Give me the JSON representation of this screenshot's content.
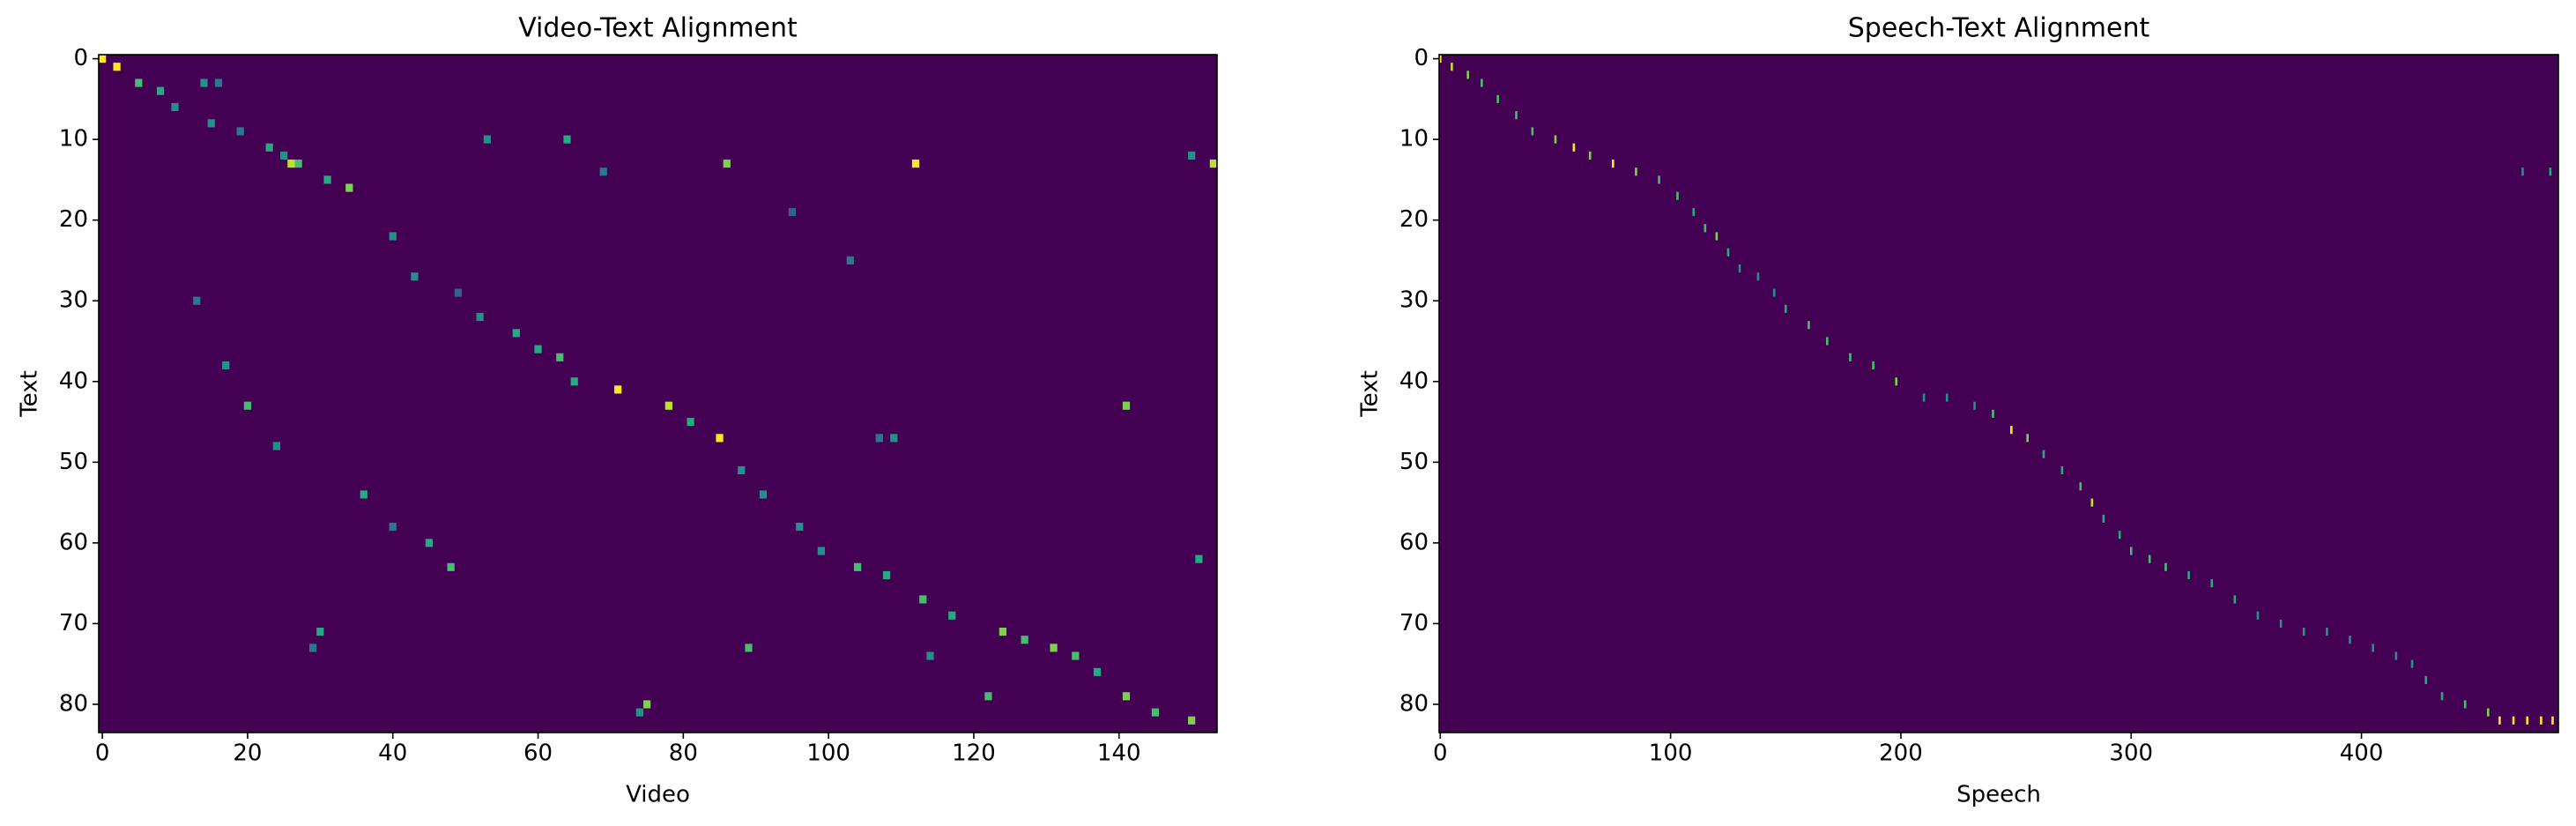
{
  "chart_data": [
    {
      "type": "heatmap",
      "title": "Video-Text Alignment",
      "xlabel": "Video",
      "ylabel": "Text",
      "xlim": [
        -0.5,
        153.5
      ],
      "ylim": [
        83.5,
        -0.5
      ],
      "xticks": [
        0,
        20,
        40,
        60,
        80,
        100,
        120,
        140
      ],
      "yticks": [
        0,
        10,
        20,
        30,
        40,
        50,
        60,
        70,
        80
      ],
      "colormap": "viridis",
      "vmin": 0,
      "vmax": 1,
      "cells": {
        "x": [
          0,
          2,
          5,
          8,
          10,
          14,
          16,
          15,
          19,
          23,
          25,
          26,
          27,
          31,
          34,
          40,
          43,
          53,
          64,
          69,
          86,
          112,
          153,
          150,
          13,
          17,
          20,
          24,
          49,
          52,
          57,
          60,
          63,
          65,
          71,
          78,
          81,
          85,
          88,
          91,
          96,
          99,
          104,
          108,
          113,
          117,
          124,
          127,
          131,
          134,
          137,
          141,
          145,
          150,
          36,
          40,
          45,
          48,
          30,
          29,
          75,
          74,
          89,
          109,
          107,
          141,
          122,
          114,
          103,
          95,
          151
        ],
        "y": [
          0,
          1,
          3,
          4,
          6,
          3,
          3,
          8,
          9,
          11,
          12,
          13,
          13,
          15,
          16,
          22,
          27,
          10,
          10,
          14,
          13,
          13,
          13,
          12,
          30,
          38,
          43,
          48,
          29,
          32,
          34,
          36,
          37,
          40,
          41,
          43,
          45,
          47,
          51,
          54,
          58,
          61,
          63,
          64,
          67,
          69,
          71,
          72,
          73,
          74,
          76,
          79,
          81,
          82,
          54,
          58,
          60,
          63,
          71,
          73,
          80,
          81,
          73,
          47,
          47,
          43,
          79,
          74,
          25,
          19,
          62
        ],
        "values": [
          1.0,
          1.0,
          0.7,
          0.6,
          0.5,
          0.5,
          0.4,
          0.5,
          0.4,
          0.6,
          0.5,
          0.9,
          0.7,
          0.6,
          0.8,
          0.5,
          0.5,
          0.5,
          0.6,
          0.4,
          0.8,
          1.0,
          0.9,
          0.5,
          0.4,
          0.5,
          0.7,
          0.5,
          0.3,
          0.5,
          0.6,
          0.6,
          0.7,
          0.6,
          1.0,
          0.9,
          0.6,
          1.0,
          0.5,
          0.5,
          0.5,
          0.5,
          0.7,
          0.6,
          0.7,
          0.6,
          0.8,
          0.7,
          0.8,
          0.7,
          0.6,
          0.8,
          0.7,
          0.8,
          0.6,
          0.4,
          0.6,
          0.7,
          0.6,
          0.4,
          0.8,
          0.5,
          0.7,
          0.5,
          0.4,
          0.8,
          0.7,
          0.5,
          0.4,
          0.3,
          0.6
        ]
      }
    },
    {
      "type": "heatmap",
      "title": "Speech-Text Alignment",
      "xlabel": "Speech",
      "ylabel": "Text",
      "xlim": [
        -0.5,
        485.5
      ],
      "ylim": [
        83.5,
        -0.5
      ],
      "xticks": [
        0,
        100,
        200,
        300,
        400
      ],
      "yticks": [
        0,
        10,
        20,
        30,
        40,
        50,
        60,
        70,
        80
      ],
      "colormap": "viridis",
      "vmin": 0,
      "vmax": 1,
      "cells": {
        "x": [
          0,
          5,
          12,
          18,
          25,
          33,
          40,
          50,
          58,
          65,
          75,
          85,
          95,
          103,
          110,
          115,
          120,
          125,
          130,
          138,
          145,
          150,
          160,
          168,
          178,
          188,
          198,
          210,
          220,
          232,
          240,
          248,
          255,
          262,
          270,
          278,
          283,
          288,
          295,
          300,
          308,
          315,
          325,
          335,
          345,
          355,
          365,
          375,
          385,
          395,
          405,
          415,
          422,
          428,
          435,
          445,
          455,
          460,
          466,
          472,
          478,
          483,
          482,
          470
        ],
        "y": [
          0,
          1,
          2,
          3,
          5,
          7,
          9,
          10,
          11,
          12,
          13,
          14,
          15,
          17,
          19,
          21,
          22,
          24,
          26,
          27,
          29,
          31,
          33,
          35,
          37,
          38,
          40,
          42,
          42,
          43,
          44,
          46,
          47,
          49,
          51,
          53,
          55,
          57,
          59,
          61,
          62,
          63,
          64,
          65,
          67,
          69,
          70,
          71,
          71,
          72,
          73,
          74,
          75,
          77,
          79,
          80,
          81,
          82,
          82,
          82,
          82,
          82,
          14,
          14
        ],
        "values": [
          1.0,
          0.9,
          0.8,
          0.7,
          0.7,
          0.7,
          0.7,
          0.8,
          1.0,
          0.8,
          1.0,
          0.8,
          0.7,
          0.7,
          0.6,
          0.7,
          0.8,
          0.6,
          0.5,
          0.5,
          0.5,
          0.6,
          0.7,
          0.7,
          0.7,
          0.7,
          0.8,
          0.5,
          0.5,
          0.5,
          0.7,
          1.0,
          0.8,
          0.6,
          0.6,
          0.7,
          0.9,
          0.6,
          0.6,
          0.7,
          0.7,
          0.7,
          0.6,
          0.6,
          0.6,
          0.5,
          0.5,
          0.5,
          0.5,
          0.5,
          0.5,
          0.5,
          0.5,
          0.6,
          0.6,
          0.7,
          0.8,
          1.0,
          1.0,
          1.0,
          1.0,
          1.0,
          0.6,
          0.5
        ]
      }
    }
  ]
}
